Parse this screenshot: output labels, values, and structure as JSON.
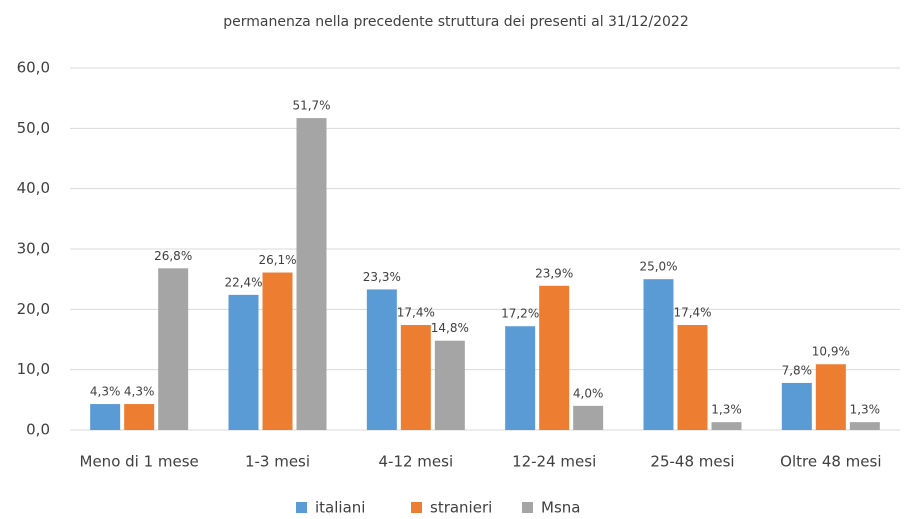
{
  "chart_data": {
    "type": "bar",
    "title": "permanenza nella precedente struttura dei presenti al 31/12/2022",
    "categories": [
      "Meno di 1 mese",
      "1-3 mesi",
      "4-12 mesi",
      "12-24 mesi",
      "25-48 mesi",
      "Oltre 48 mesi"
    ],
    "series": [
      {
        "name": "italiani",
        "color": "#5b9bd5",
        "values": [
          4.3,
          22.4,
          23.3,
          17.2,
          25.0,
          7.8
        ],
        "value_labels": [
          "4,3%",
          "22,4%",
          "23,3%",
          "17,2%",
          "25,0%",
          "7,8%"
        ]
      },
      {
        "name": "stranieri",
        "color": "#ed7d31",
        "values": [
          4.3,
          26.1,
          17.4,
          23.9,
          17.4,
          10.9
        ],
        "value_labels": [
          "4,3%",
          "26,1%",
          "17,4%",
          "23,9%",
          "17,4%",
          "10,9%"
        ]
      },
      {
        "name": "Msna",
        "color": "#a5a5a5",
        "values": [
          26.8,
          51.7,
          14.8,
          4.0,
          1.3,
          1.3
        ],
        "value_labels": [
          "26,8%",
          "51,7%",
          "14,8%",
          "4,0%",
          "1,3%",
          "1,3%"
        ]
      }
    ],
    "ylim": [
      0,
      60
    ],
    "yticks": [
      {
        "value": 0,
        "label": "0,0"
      },
      {
        "value": 10,
        "label": "10,0"
      },
      {
        "value": 20,
        "label": "20,0"
      },
      {
        "value": 30,
        "label": "30,0"
      },
      {
        "value": 40,
        "label": "40,0"
      },
      {
        "value": 50,
        "label": "50,0"
      },
      {
        "value": 60,
        "label": "60,0"
      }
    ],
    "grid": true,
    "legend": "bottom"
  }
}
